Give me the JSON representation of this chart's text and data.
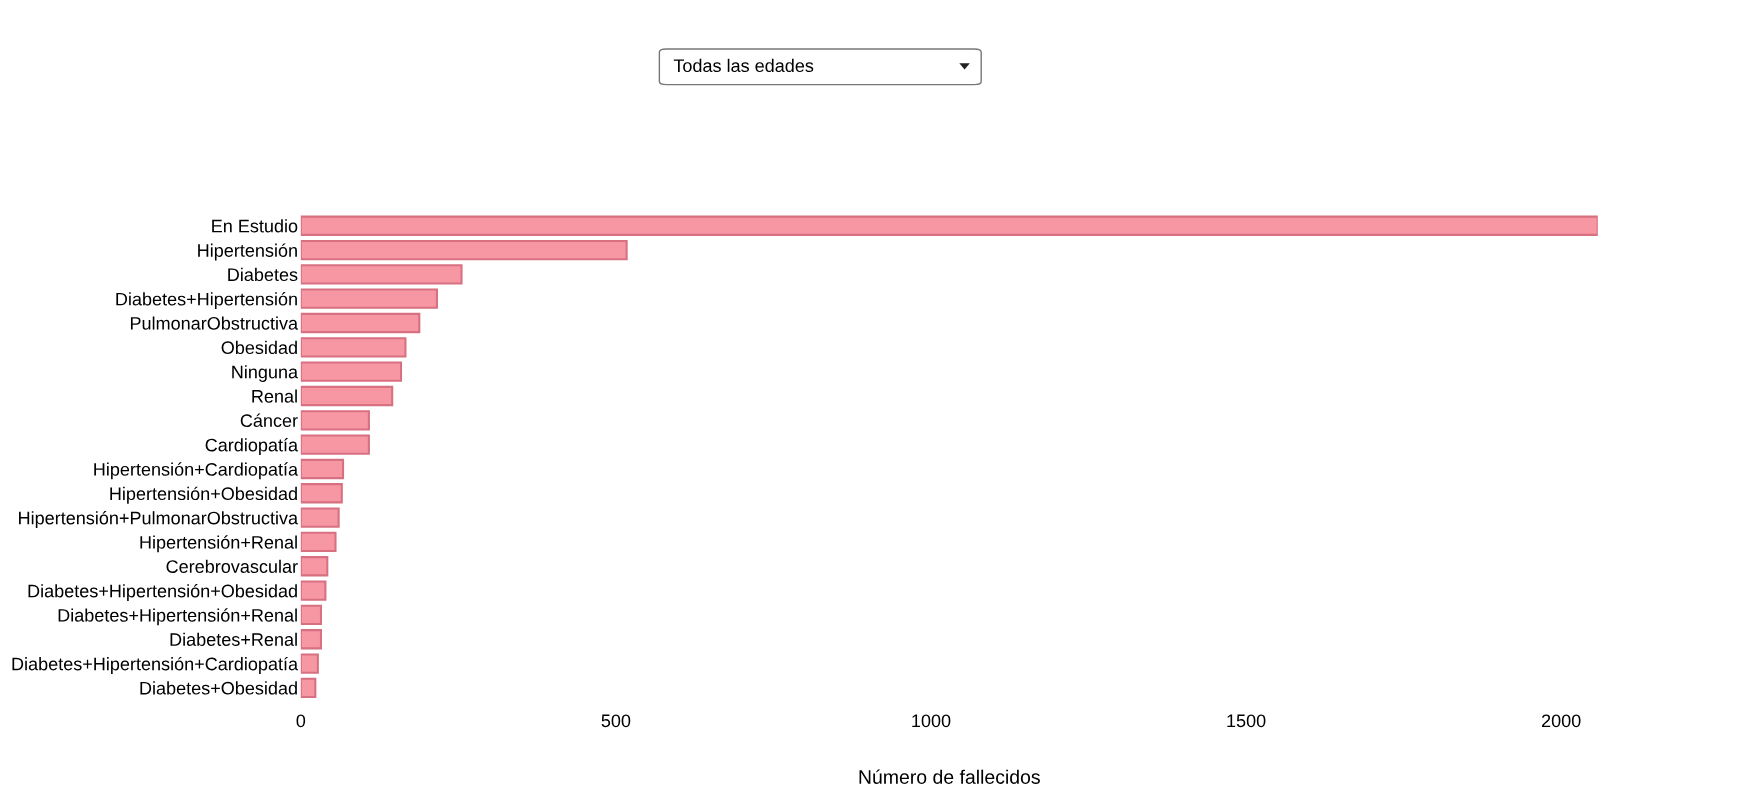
{
  "chart_data": {
    "type": "bar",
    "orientation": "horizontal",
    "subtitle": "Todas las edades",
    "xlabel": "Número de fallecidos",
    "categories": [
      "En Estudio",
      "Hipertensión",
      "Diabetes",
      "Diabetes+Hipertensión",
      "PulmonarObstructiva",
      "Obesidad",
      "Ninguna",
      "Renal",
      "Cáncer",
      "Cardiopatía",
      "Hipertensión+Cardiopatía",
      "Hipertensión+Obesidad",
      "Hipertensión+PulmonarObstructiva",
      "Hipertensión+Renal",
      "Cerebrovascular",
      "Diabetes+Hipertensión+Obesidad",
      "Diabetes+Hipertensión+Renal",
      "Diabetes+Renal",
      "Diabetes+Hipertensión+Cardiopatía",
      "Diabetes+Obesidad"
    ],
    "values": [
      2058,
      517,
      255,
      216,
      188,
      166,
      159,
      145,
      108,
      108,
      67,
      65,
      60,
      55,
      42,
      39,
      32,
      32,
      27,
      23
    ],
    "color": "#f797a4",
    "xlim": [
      0,
      2058
    ],
    "xticks": [
      0,
      500,
      1000,
      1500,
      2000
    ],
    "grid": false
  }
}
